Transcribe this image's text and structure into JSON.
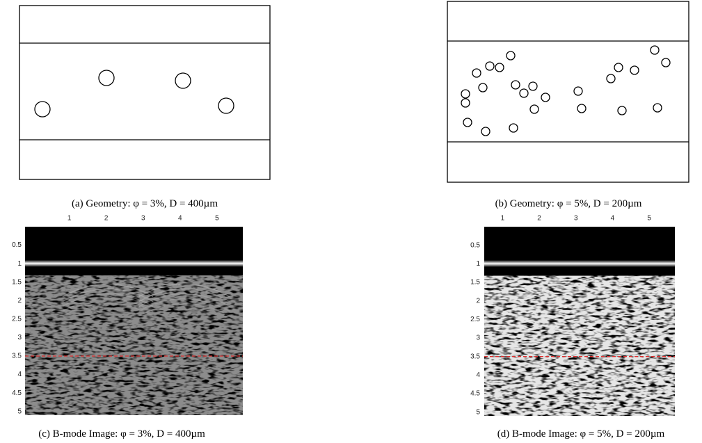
{
  "geometry": [
    {
      "caption": "(a) Geometry: φ = 3%, D = 400µm"
    },
    {
      "caption": "(b) Geometry: φ = 5%, D = 200µm"
    }
  ],
  "bmode": [
    {
      "caption": "(c) B-mode Image: φ = 3%, D = 400µm",
      "xticks": [
        1,
        2,
        3,
        4,
        5
      ],
      "yticks": [
        0.5,
        1,
        1.5,
        2,
        2.5,
        3,
        3.5,
        4,
        4.5,
        5
      ],
      "xlim": [
        -0.2,
        5.7
      ],
      "ylim": [
        0,
        5.1
      ],
      "reference_line": 3.5,
      "reference_color": "#e03030"
    },
    {
      "caption": "(d) B-mode Image: φ = 5%, D = 200µm",
      "xticks": [
        1,
        2,
        3,
        4,
        5
      ],
      "yticks": [
        0.5,
        1,
        1.5,
        2,
        2.5,
        3,
        3.5,
        4,
        4.5,
        5
      ],
      "xlim": [
        0.5,
        5.7
      ],
      "ylim": [
        0,
        5.1
      ],
      "reference_line": 3.5,
      "reference_color": "#e03030"
    }
  ]
}
